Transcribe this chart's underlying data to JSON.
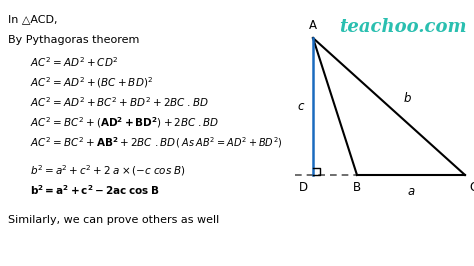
{
  "bg_color": "#ffffff",
  "teachoo_color": "#2abfb0",
  "text_color": "#000000",
  "blue_color": "#1a6bbf",
  "fig_width": 4.74,
  "fig_height": 2.66,
  "dpi": 100,
  "intro_line": "In △ACD,",
  "line1": "By Pythagoras theorem",
  "eq1": "$AC^2 = AD^2 + CD^2$",
  "eq2": "$AC^2 = AD^2 + (BC + BD)^2$",
  "eq3": "$AC^2 = AD^2 + BC^2 + BD^2 + 2BC\\;.BD$",
  "eq4": "$AC^2 = BC^2 + (\\mathbf{AD^2 + BD^2}) + 2BC\\;.BD$",
  "eq5": "$AC^2 = BC^2 + \\mathbf{AB^2} + 2BC\\;.BD$",
  "eq5_note": "$( \\;As\\; AB^2 = AD^2 + BD^2)$",
  "eq6": "$b^2 = a^2 + c^2 + 2\\;a \\times (-c\\;cos\\;B)$",
  "eq7_bold": "$\\mathbf{b^2 = a^2 + c^2 - 2ac\\;cos\\;B}$",
  "footer": "Similarly, we can prove others as well",
  "teachoo_text": "teachoo.com",
  "label_A": "A",
  "label_B": "B",
  "label_C": "C",
  "label_D": "D",
  "label_a": "a",
  "label_b": "b",
  "label_c": "c"
}
